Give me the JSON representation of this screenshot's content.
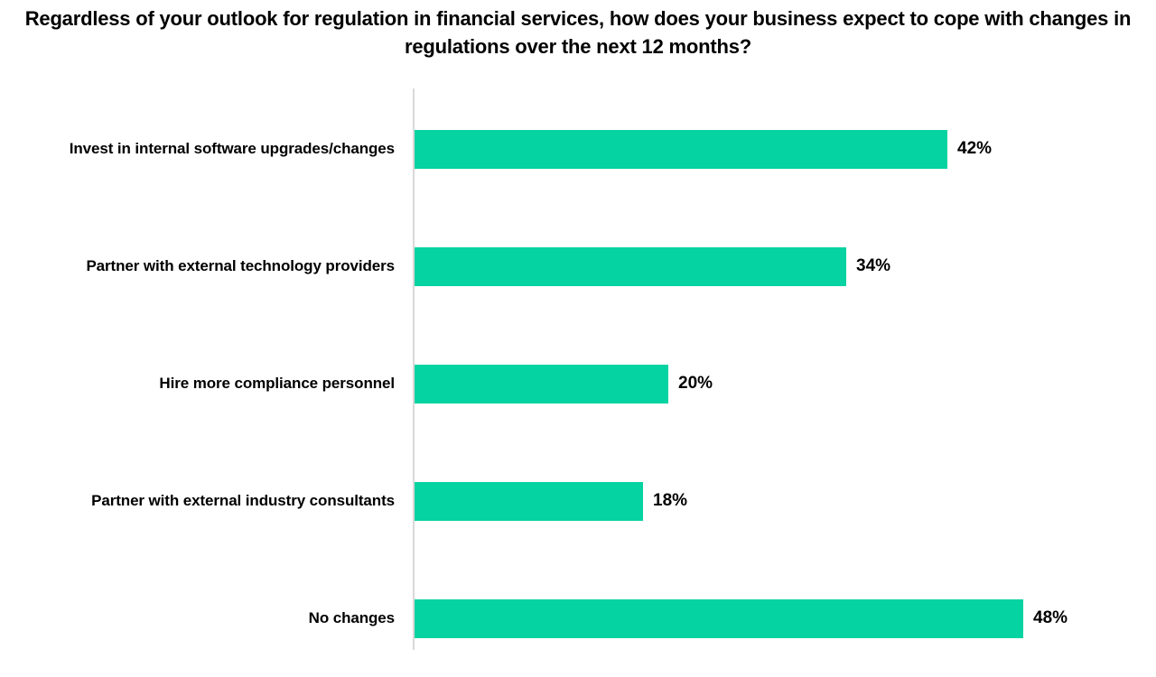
{
  "chart_data": {
    "type": "bar",
    "orientation": "horizontal",
    "title": "Regardless of your outlook for regulation in financial services, how does your business expect to cope with changes in regulations over the next 12 months?",
    "categories": [
      "Invest in internal software upgrades/changes",
      "Partner with external technology providers",
      "Hire more compliance personnel",
      "Partner with external industry consultants",
      "No changes"
    ],
    "values": [
      42,
      34,
      20,
      18,
      48
    ],
    "data_labels": [
      "42%",
      "34%",
      "20%",
      "18%",
      "48%"
    ],
    "xlabel": "",
    "ylabel": "",
    "xlim": [
      0,
      58
    ],
    "grid": false,
    "legend": "none",
    "bar_color": "#05d3a1",
    "axis_line_color": "#d9d9d9",
    "text_color": "#000000"
  }
}
